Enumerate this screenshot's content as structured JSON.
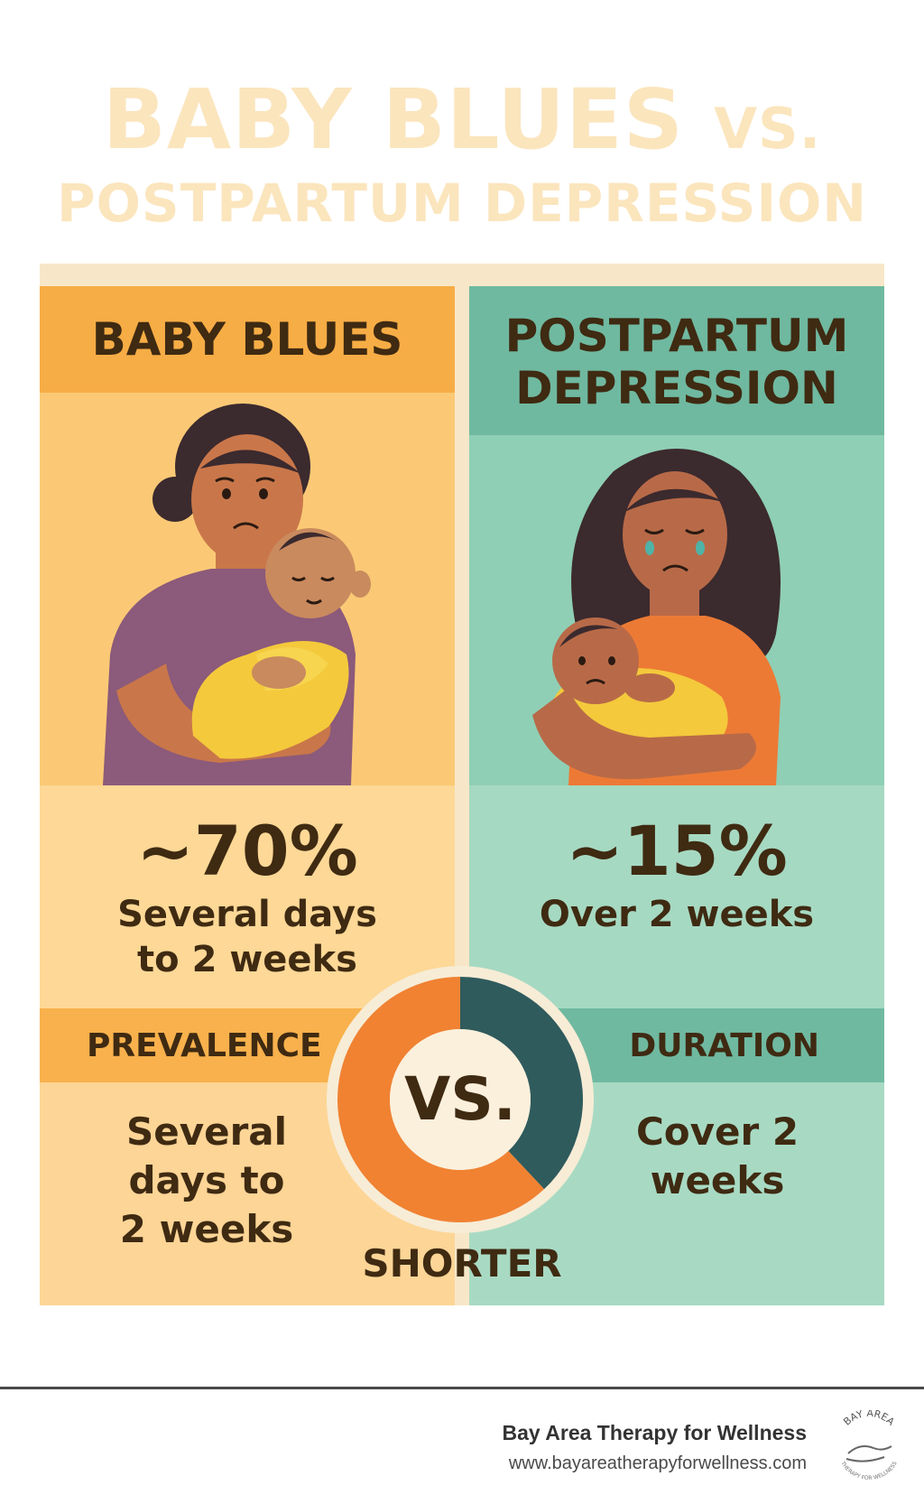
{
  "title": {
    "line1_main": "BABY BLUES",
    "line1_vs": "VS.",
    "line2": "POSTPARTUM DEPRESSION"
  },
  "left": {
    "header": "BABY BLUES",
    "prevalence": "~70%",
    "duration_line1": "Several days",
    "duration_line2": "to 2 weeks",
    "section_label": "PREVALENCE",
    "detail_line1": "Several",
    "detail_line2": "days to",
    "detail_line3": "2 weeks"
  },
  "right": {
    "header_line1": "POSTPARTUM",
    "header_line2": "DEPRESSION",
    "prevalence": "~15%",
    "duration": "Over 2 weeks",
    "section_label": "DURATION",
    "detail_line1": "Cover 2",
    "detail_line2": "weeks"
  },
  "center": {
    "vs_label": "VS.",
    "caption": "SHORTER",
    "ring_split": 0.38
  },
  "footer": {
    "organization": "Bay Area Therapy for Wellness",
    "website": "www.bayareatherapyforwellness.com",
    "logo_text_top": "BAY AREA",
    "logo_text_bottom": "THERAPY FOR WELLNESS"
  },
  "colors": {
    "orange": "#f08232",
    "teal_dark": "#2f5b5d",
    "title": "#fbe5bd",
    "text_brown": "#3f2a12"
  },
  "icons": {
    "left_illustration": "mother-holding-baby-illustration",
    "right_illustration": "crying-mother-holding-baby-illustration",
    "logo": "hands-holding-logo-icon"
  }
}
